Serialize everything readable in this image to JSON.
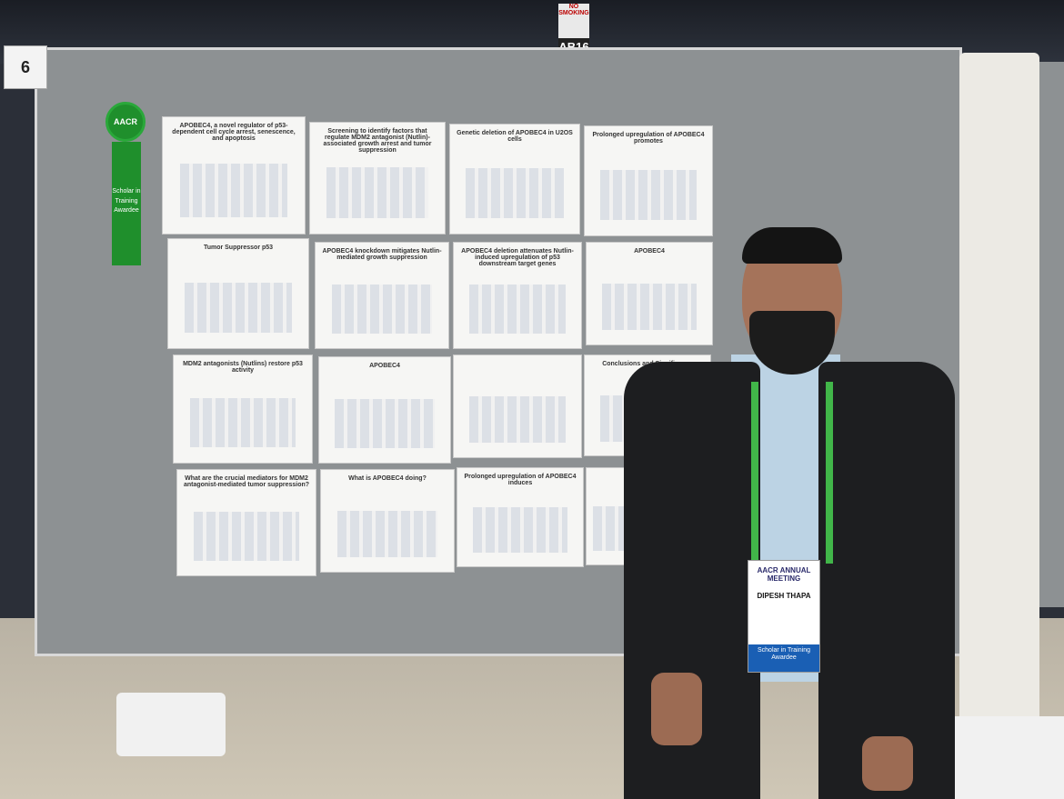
{
  "venue": {
    "sign_top": "NO SMOKING",
    "sign_code": "AB16"
  },
  "board": {
    "number": "6"
  },
  "ribbon": {
    "org": "AACR",
    "text": "Scholar in Training Awardee"
  },
  "panels": [
    {
      "title": "APOBEC4, a novel regulator of p53-dependent cell cycle arrest, senescence, and apoptosis"
    },
    {
      "title": "Screening to identify factors that regulate MDM2 antagonist (Nutlin)-associated growth arrest and tumor suppression"
    },
    {
      "title": "Genetic deletion of APOBEC4 in U2OS cells"
    },
    {
      "title": "Prolonged upregulation of APOBEC4 promotes"
    },
    {
      "title": "Tumor Suppressor p53"
    },
    {
      "title": "APOBEC4 knockdown mitigates Nutlin-mediated growth suppression"
    },
    {
      "title": "APOBEC4 deletion attenuates Nutlin-induced upregulation of p53 downstream target genes"
    },
    {
      "title": "APOBEC4"
    },
    {
      "title": "MDM2 antagonists (Nutlins) restore p53 activity"
    },
    {
      "title": "APOBEC4"
    },
    {
      "title": ""
    },
    {
      "title": "Conclusions and Significance"
    },
    {
      "title": "What are the crucial mediators for MDM2 antagonist-mediated tumor suppression?"
    },
    {
      "title": "What is APOBEC4 doing?"
    },
    {
      "title": "Prolonged upregulation of APOBEC4 induces"
    },
    {
      "title": ""
    }
  ],
  "badge": {
    "org": "AACR ANNUAL MEETING",
    "name": "DIPESH THAPA",
    "award": "Scholar in Training Awardee"
  }
}
